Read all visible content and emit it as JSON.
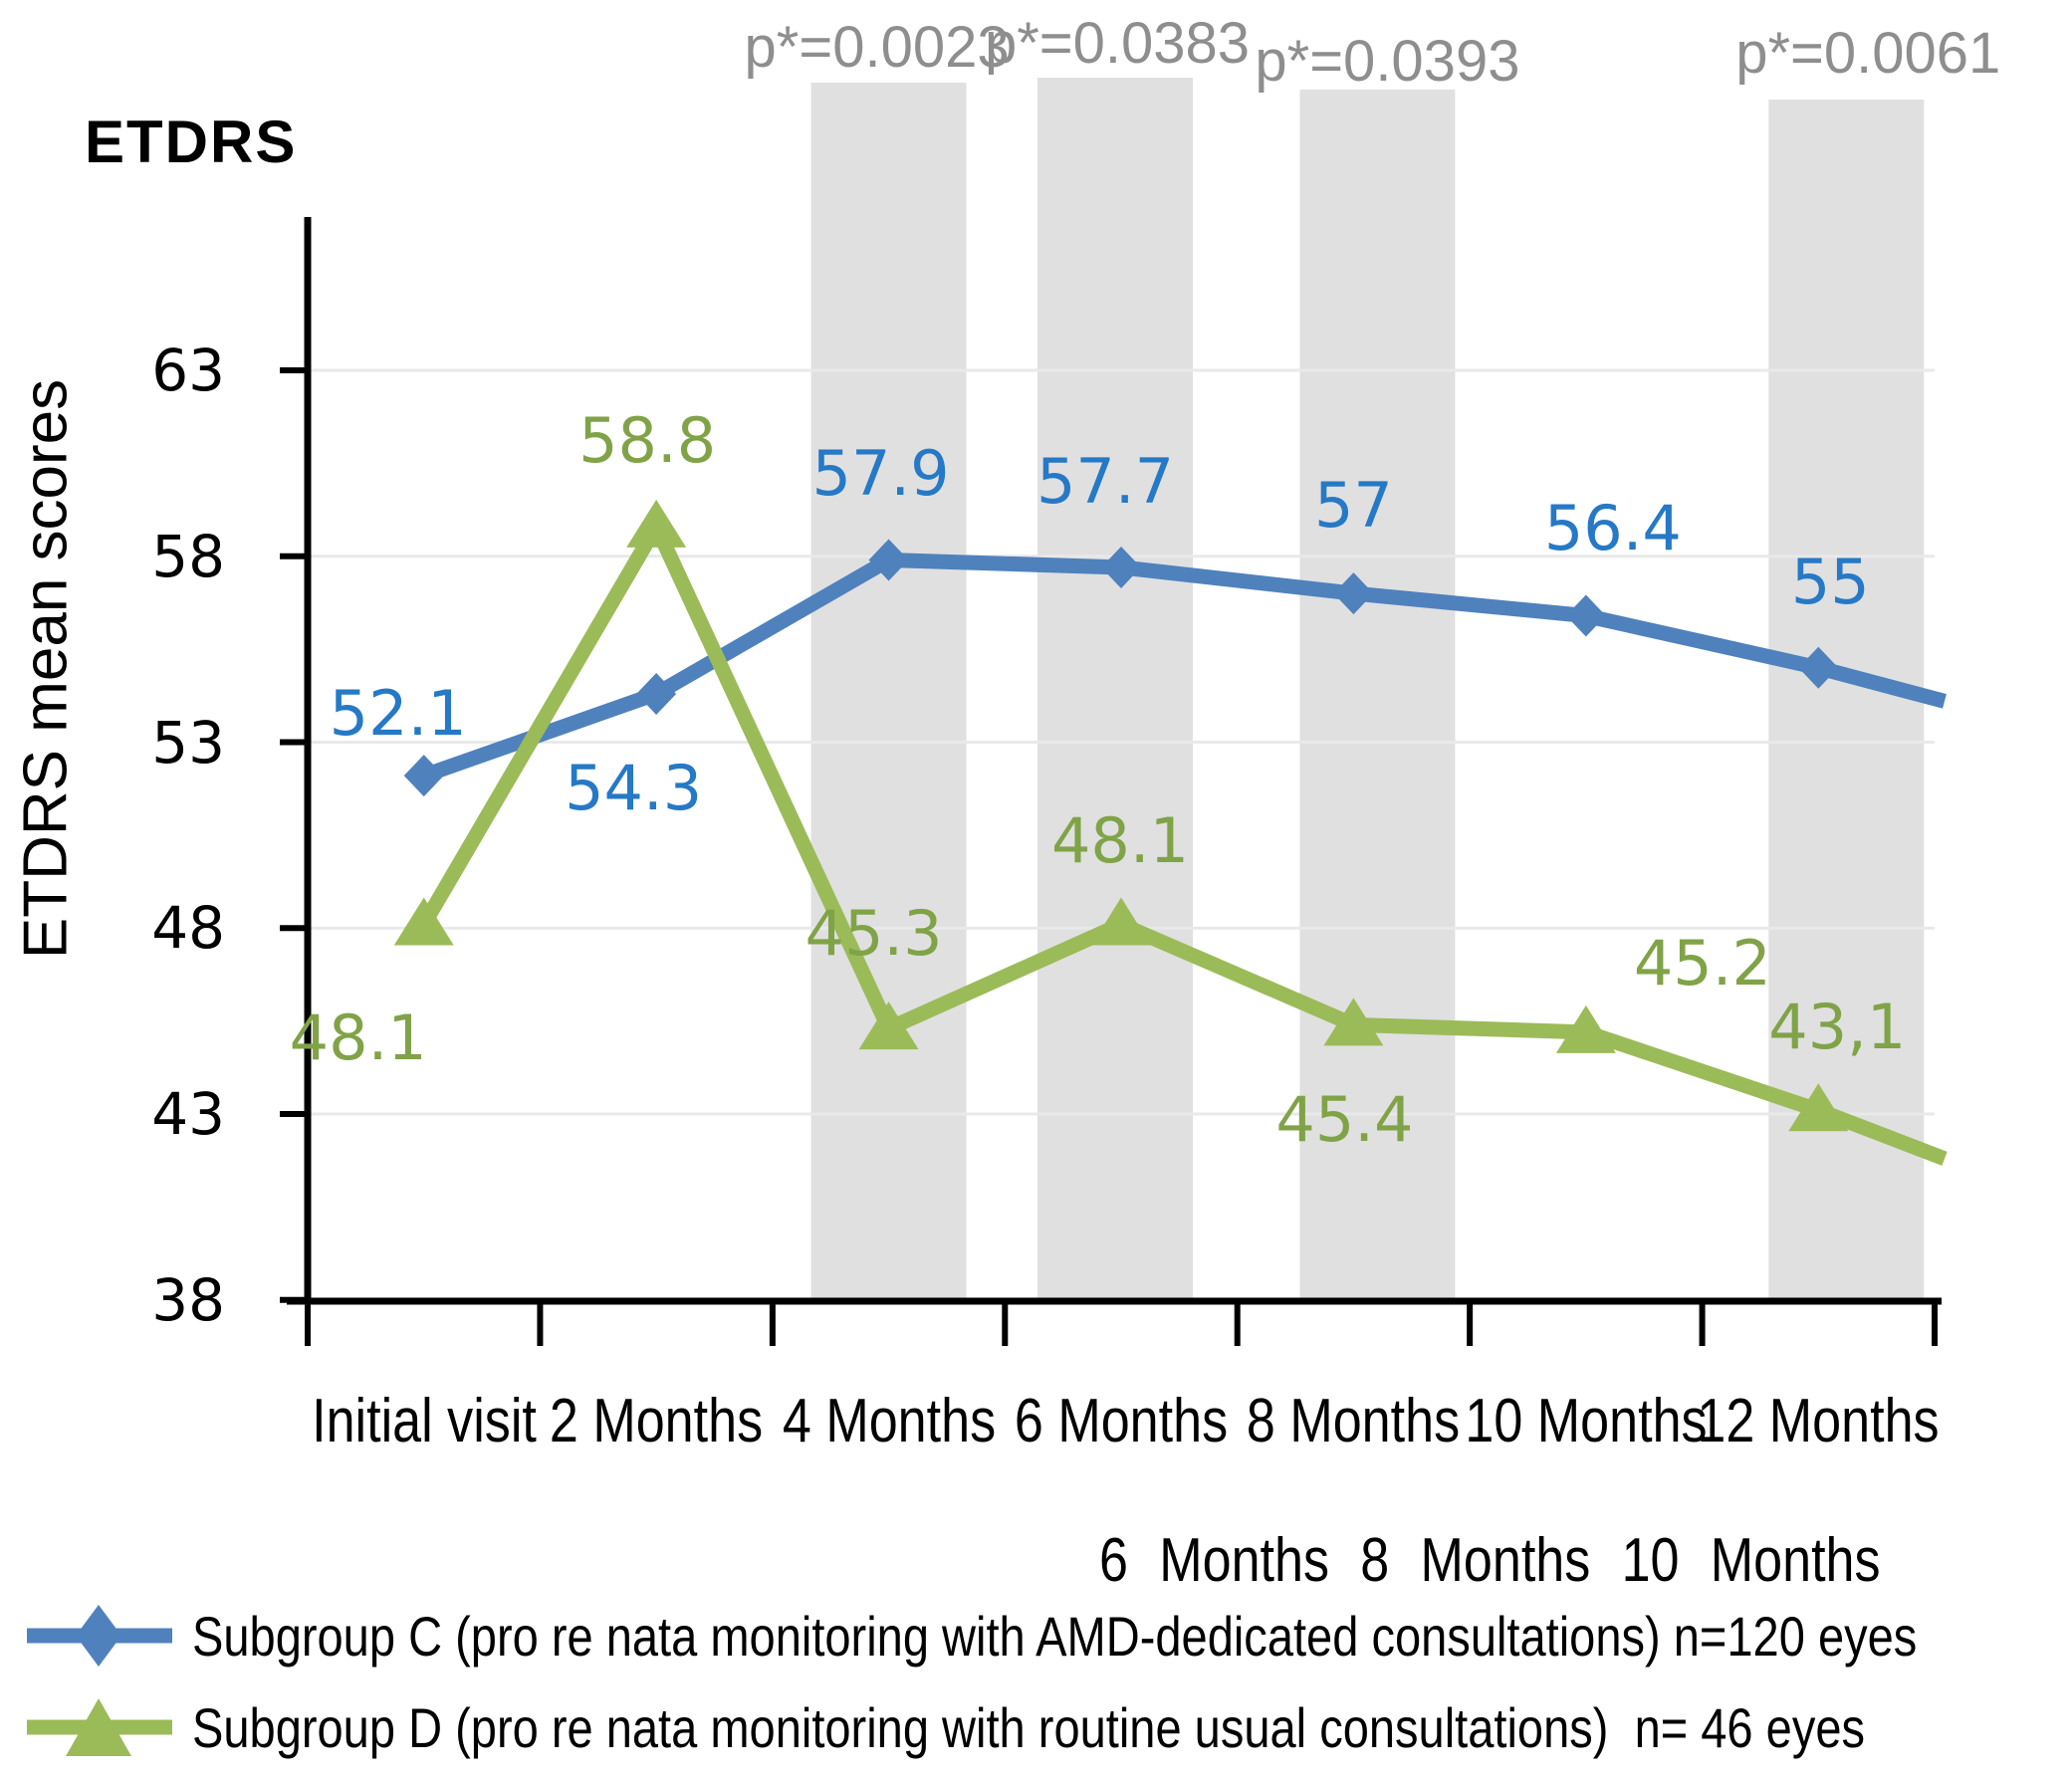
{
  "title": "ETDRS",
  "y_axis": {
    "title": "ETDRS mean scores",
    "ticks": [
      63,
      58,
      53,
      48,
      43,
      38
    ],
    "min": 38,
    "max": 63
  },
  "stray_axis_text": "6 Months 8 Months 10 Months",
  "chart_data": {
    "type": "line",
    "title": "ETDRS",
    "ylabel": "ETDRS mean scores",
    "ylim": [
      38,
      63
    ],
    "y_ticks": [
      63,
      58,
      53,
      48,
      43,
      38
    ],
    "grid": true,
    "legend_position": "bottom",
    "categories": [
      "Initial visit",
      "2 Months",
      "4 Months",
      "6 Months",
      "8 Months",
      "10 Months",
      "12 Months"
    ],
    "series": [
      {
        "name": "Subgroup C",
        "color": "#4f81bd",
        "label_color": "#2579c6",
        "marker": "diamond",
        "values": [
          52.1,
          54.3,
          57.9,
          57.7,
          57,
          56.4,
          55
        ],
        "point_labels": [
          "52.1",
          "54.3",
          "57.9",
          "57.7",
          "57",
          "56.4",
          "55"
        ],
        "label_offsets": [
          [
            -26,
            -62
          ],
          [
            -23,
            95
          ],
          [
            -8,
            -86
          ],
          [
            -16,
            -86
          ],
          [
            0,
            -88
          ],
          [
            27,
            -88
          ],
          [
            12,
            -86
          ]
        ],
        "tail_value": 54.1
      },
      {
        "name": "Subgroup D",
        "color": "#9bbb59",
        "label_color": "#80a347",
        "marker": "triangle",
        "values": [
          48.1,
          58.8,
          45.3,
          48.1,
          45.4,
          45.2,
          43.1
        ],
        "point_labels": [
          "48.1",
          "58.8",
          "45.3",
          "48.1",
          "45.4",
          "45.2",
          "43,1"
        ],
        "label_offsets": [
          [
            -66,
            114
          ],
          [
            -9,
            -86
          ],
          [
            -15,
            -95
          ],
          [
            -1,
            -84
          ],
          [
            -9,
            96
          ],
          [
            117,
            -69
          ],
          [
            19,
            -83
          ]
        ],
        "tail_value": 41.8
      }
    ],
    "significance_markers": [
      {
        "category_index": 2,
        "p_label": "p*=0.0023",
        "band_shift": 0,
        "band_top": 83,
        "label_dx": -12,
        "label_cy": 48
      },
      {
        "category_index": 3,
        "p_label": "p*=0.0383",
        "band_shift": -6,
        "band_top": 78,
        "label_dx": 2,
        "label_cy": 44
      },
      {
        "category_index": 4,
        "p_label": "p*=0.0393",
        "band_shift": 24,
        "band_top": 90,
        "label_dx": 10,
        "label_cy": 62
      },
      {
        "category_index": 6,
        "p_label": "p*=0.0061",
        "band_shift": 28,
        "band_top": 100,
        "label_dx": 22,
        "label_cy": 54
      }
    ]
  },
  "legend": {
    "items": [
      {
        "label": "Subgroup C (pro re nata monitoring with AMD-dedicated consultations) n=120 eyes",
        "color": "#4f81bd",
        "marker": "diamond"
      },
      {
        "label": "Subgroup D (pro re nata monitoring with routine usual consultations)  n= 46 eyes",
        "color": "#9bbb59",
        "marker": "triangle"
      }
    ]
  },
  "colors": {
    "band": "#e0e0e0",
    "grid": "#e9e9e9",
    "axis": "#000000",
    "p_text": "#8e8e8e",
    "subgroup_c": "#4f81bd",
    "subgroup_c_label": "#2579c6",
    "subgroup_d": "#9bbb59",
    "subgroup_d_label": "#80a347"
  }
}
